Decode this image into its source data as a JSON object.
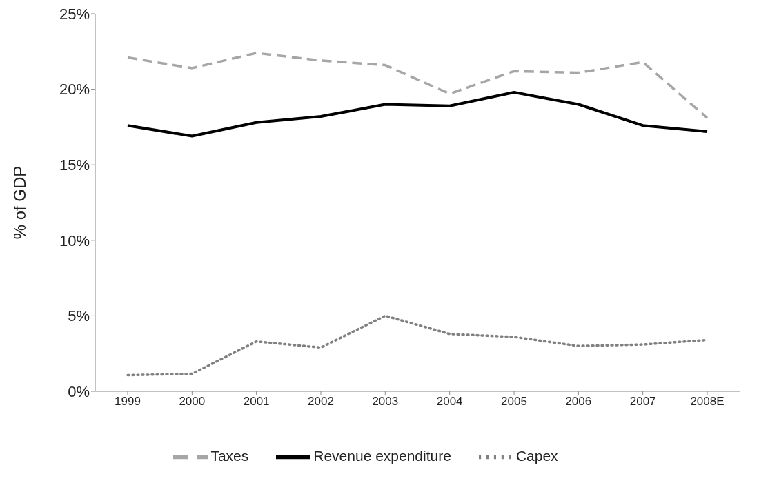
{
  "chart_data": {
    "type": "line",
    "ylabel": "% of GDP",
    "categories": [
      "1999",
      "2000",
      "2001",
      "2002",
      "2003",
      "2004",
      "2005",
      "2006",
      "2007",
      "2008E"
    ],
    "series": [
      {
        "name": "Taxes",
        "color": "#a6a6a6",
        "line_style": "dashed",
        "values": [
          22.1,
          21.4,
          22.4,
          21.9,
          21.6,
          19.7,
          21.2,
          21.1,
          21.8,
          18.1
        ]
      },
      {
        "name": "Revenue expenditure",
        "color": "#000000",
        "line_style": "solid",
        "values": [
          17.6,
          16.9,
          17.8,
          18.2,
          19.0,
          18.9,
          19.8,
          19.0,
          17.6,
          17.2
        ]
      },
      {
        "name": "Capex",
        "color": "#808080",
        "line_style": "dotted",
        "values": [
          1.07,
          1.16,
          3.3,
          2.9,
          5.0,
          3.8,
          3.6,
          3.0,
          3.1,
          3.4
        ]
      }
    ],
    "ylim": [
      0,
      25
    ],
    "yticks": [
      {
        "value": 0,
        "label": "0%"
      },
      {
        "value": 5,
        "label": "5%"
      },
      {
        "value": 10,
        "label": "10%"
      },
      {
        "value": 15,
        "label": "15%"
      },
      {
        "value": 20,
        "label": "20%"
      },
      {
        "value": 25,
        "label": "25%"
      }
    ],
    "grid": false,
    "legend": "bottom",
    "marker": "none"
  }
}
